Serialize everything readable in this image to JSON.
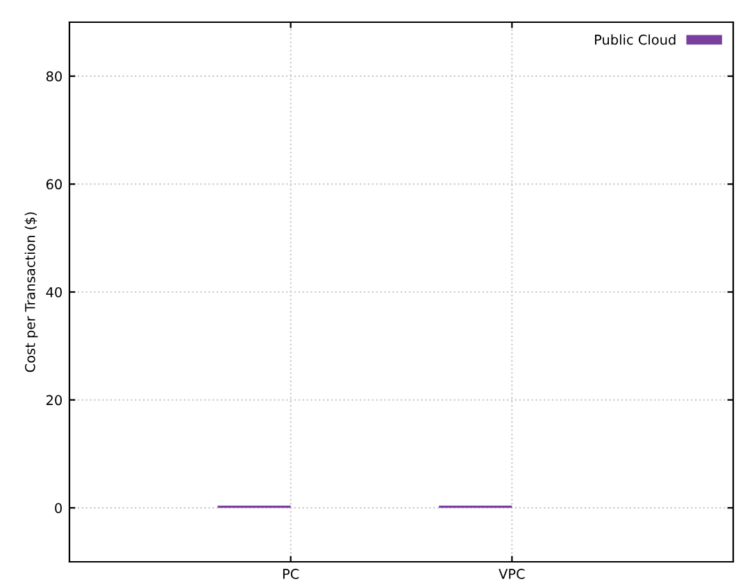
{
  "chart_data": {
    "type": "bar",
    "ylabel": "Cost per Transaction ($)",
    "categories": [
      "PC",
      "VPC"
    ],
    "series": [
      {
        "name": "Public Cloud",
        "color": "#7a3f9e",
        "values": [
          0.4,
          0.4
        ]
      }
    ],
    "ylim": [
      -10,
      90
    ],
    "yticks": [
      0,
      20,
      40,
      60,
      80
    ],
    "grid": true,
    "legend": "top right"
  }
}
